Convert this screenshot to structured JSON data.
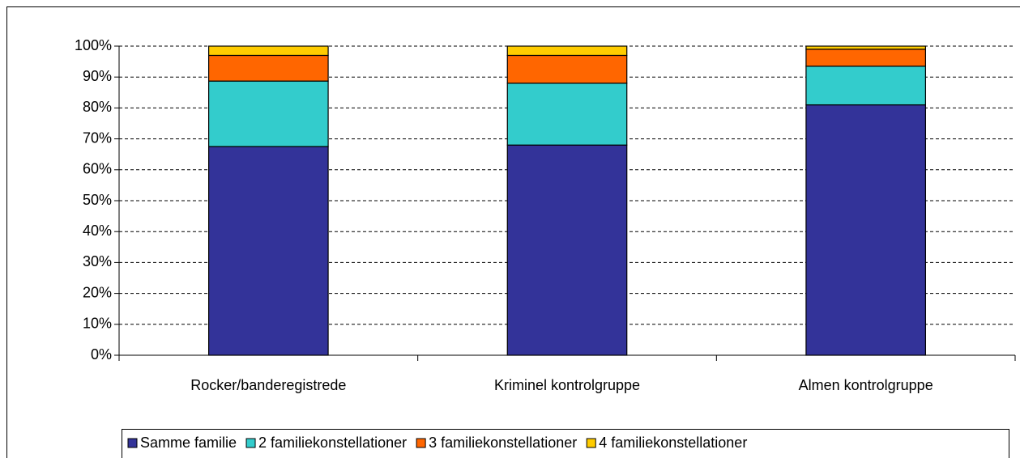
{
  "chart_data": {
    "type": "stacked_bar",
    "categories": [
      "Rocker/banderegistrede",
      "Kriminel kontrolgruppe",
      "Almen kontrolgruppe"
    ],
    "series": [
      {
        "name": "Samme familie",
        "color": "#333399",
        "values": [
          67.5,
          68,
          81
        ]
      },
      {
        "name": "2 familiekonstellationer",
        "color": "#33cccc",
        "values": [
          21.2,
          20,
          12.5
        ]
      },
      {
        "name": "3 familiekonstellationer",
        "color": "#ff6600",
        "values": [
          8.3,
          9,
          5.5
        ]
      },
      {
        "name": "4 familiekonstellationer",
        "color": "#ffcc00",
        "values": [
          3,
          3,
          1
        ]
      }
    ],
    "ylim": [
      0,
      100
    ],
    "yticks": [
      {
        "value": 0,
        "label": "0%"
      },
      {
        "value": 10,
        "label": "10%"
      },
      {
        "value": 20,
        "label": "20%"
      },
      {
        "value": 30,
        "label": "30%"
      },
      {
        "value": 40,
        "label": "40%"
      },
      {
        "value": 50,
        "label": "50%"
      },
      {
        "value": 60,
        "label": "60%"
      },
      {
        "value": 70,
        "label": "70%"
      },
      {
        "value": 80,
        "label": "80%"
      },
      {
        "value": 90,
        "label": "90%"
      },
      {
        "value": 100,
        "label": "100%"
      }
    ],
    "grid": true,
    "legend": "bottom"
  }
}
